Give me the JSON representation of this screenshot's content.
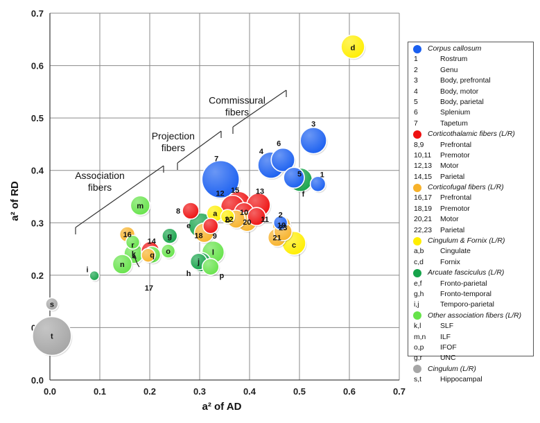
{
  "chart_data": {
    "type": "scatter",
    "subtype": "bubble",
    "xlabel": "a² of AD",
    "ylabel": "a² of RD",
    "xlim": [
      0.0,
      0.7
    ],
    "ylim": [
      0.0,
      0.7
    ],
    "x_ticks": [
      "0.0",
      "0.1",
      "0.2",
      "0.3",
      "0.4",
      "0.5",
      "0.6",
      "0.7"
    ],
    "y_ticks": [
      "0.0",
      "0.1",
      "0.2",
      "0.3",
      "0.4",
      "0.5",
      "0.6",
      "0.7"
    ],
    "grid": true,
    "legend_position": "right",
    "colors": {
      "corpus_callosum": "#1a5ff0",
      "corticothalamic": "#ee1111",
      "corticofugal": "#f7b22a",
      "cingulum_fornix": "#ffee00",
      "arcuate": "#16a34a",
      "other_association": "#66e34a",
      "cingulum_lr": "#a6a6a6"
    },
    "points": [
      {
        "label": "1",
        "group": "corpus_callosum",
        "x": 0.537,
        "y": 0.374,
        "r": 11
      },
      {
        "label": "2",
        "group": "corpus_callosum",
        "x": 0.462,
        "y": 0.3,
        "r": 10
      },
      {
        "label": "3",
        "group": "corpus_callosum",
        "x": 0.528,
        "y": 0.457,
        "r": 19
      },
      {
        "label": "4",
        "group": "corpus_callosum",
        "x": 0.443,
        "y": 0.41,
        "r": 19
      },
      {
        "label": "5",
        "group": "corpus_callosum",
        "x": 0.489,
        "y": 0.386,
        "r": 15
      },
      {
        "label": "6",
        "group": "corpus_callosum",
        "x": 0.467,
        "y": 0.42,
        "r": 17
      },
      {
        "label": "7",
        "group": "corpus_callosum",
        "x": 0.342,
        "y": 0.383,
        "r": 27
      },
      {
        "label": "8",
        "group": "corticothalamic",
        "x": 0.282,
        "y": 0.323,
        "r": 12
      },
      {
        "label": "9",
        "group": "corticothalamic",
        "x": 0.322,
        "y": 0.294,
        "r": 11
      },
      {
        "label": "10",
        "group": "corticothalamic",
        "x": 0.389,
        "y": 0.32,
        "r": 14
      },
      {
        "label": "11",
        "group": "corticothalamic",
        "x": 0.414,
        "y": 0.312,
        "r": 13
      },
      {
        "label": "12",
        "group": "corticothalamic",
        "x": 0.366,
        "y": 0.33,
        "r": 17
      },
      {
        "label": "13",
        "group": "corticothalamic",
        "x": 0.418,
        "y": 0.334,
        "r": 17
      },
      {
        "label": "14",
        "group": "corticothalamic",
        "x": 0.201,
        "y": 0.247,
        "r": 13
      },
      {
        "label": "15",
        "group": "corticothalamic",
        "x": 0.378,
        "y": 0.336,
        "r": 18
      },
      {
        "label": "16",
        "group": "corticofugal",
        "x": 0.155,
        "y": 0.278,
        "r": 11
      },
      {
        "label": "17",
        "group": "corticofugal",
        "x": 0.197,
        "y": 0.238,
        "r": 10
      },
      {
        "label": "18",
        "group": "corticofugal",
        "x": 0.309,
        "y": 0.281,
        "r": 14
      },
      {
        "label": "19",
        "group": "corticofugal",
        "x": 0.464,
        "y": 0.296,
        "r": 13
      },
      {
        "label": "20",
        "group": "corticofugal",
        "x": 0.395,
        "y": 0.302,
        "r": 14
      },
      {
        "label": "21",
        "group": "corticofugal",
        "x": 0.455,
        "y": 0.272,
        "r": 13
      },
      {
        "label": "22",
        "group": "corticofugal",
        "x": 0.373,
        "y": 0.307,
        "r": 13
      },
      {
        "label": "23",
        "group": "corticofugal",
        "x": 0.467,
        "y": 0.283,
        "r": 13
      },
      {
        "label": "a",
        "group": "cingulum_fornix",
        "x": 0.331,
        "y": 0.318,
        "r": 12
      },
      {
        "label": "b",
        "group": "cingulum_fornix",
        "x": 0.356,
        "y": 0.312,
        "r": 10
      },
      {
        "label": "c",
        "group": "cingulum_fornix",
        "x": 0.489,
        "y": 0.261,
        "r": 17
      },
      {
        "label": "d",
        "group": "cingulum_fornix",
        "x": 0.607,
        "y": 0.636,
        "r": 17
      },
      {
        "label": "e",
        "group": "arcuate",
        "x": 0.303,
        "y": 0.295,
        "r": 18
      },
      {
        "label": "f",
        "group": "arcuate",
        "x": 0.502,
        "y": 0.382,
        "r": 17
      },
      {
        "label": "g",
        "group": "arcuate",
        "x": 0.24,
        "y": 0.275,
        "r": 11
      },
      {
        "label": "h",
        "group": "arcuate",
        "x": 0.303,
        "y": 0.225,
        "r": 14
      },
      {
        "label": "i",
        "group": "arcuate",
        "x": 0.089,
        "y": 0.199,
        "r": 7
      },
      {
        "label": "j",
        "group": "arcuate",
        "x": 0.298,
        "y": 0.226,
        "r": 12
      },
      {
        "label": "k",
        "group": "other_association",
        "x": 0.168,
        "y": 0.241,
        "r": 14
      },
      {
        "label": "l",
        "group": "other_association",
        "x": 0.327,
        "y": 0.244,
        "r": 16
      },
      {
        "label": "m",
        "group": "other_association",
        "x": 0.181,
        "y": 0.333,
        "r": 14
      },
      {
        "label": "n",
        "group": "other_association",
        "x": 0.145,
        "y": 0.221,
        "r": 14
      },
      {
        "label": "o",
        "group": "other_association",
        "x": 0.237,
        "y": 0.246,
        "r": 10
      },
      {
        "label": "p",
        "group": "other_association",
        "x": 0.322,
        "y": 0.216,
        "r": 12
      },
      {
        "label": "q",
        "group": "other_association",
        "x": 0.205,
        "y": 0.239,
        "r": 12
      },
      {
        "label": "r",
        "group": "other_association",
        "x": 0.166,
        "y": 0.263,
        "r": 10
      },
      {
        "label": "s",
        "group": "cingulum_lr",
        "x": 0.004,
        "y": 0.145,
        "r": 9
      },
      {
        "label": "t",
        "group": "cingulum_lr",
        "x": 0.004,
        "y": 0.084,
        "r": 28
      }
    ],
    "annotations": [
      {
        "lines": [
          "Commissural",
          "fibers"
        ],
        "x": 0.375,
        "y": 0.527
      },
      {
        "lines": [
          "Projection",
          "fibers"
        ],
        "x": 0.247,
        "y": 0.459
      },
      {
        "lines": [
          "Association",
          "fibers"
        ],
        "x": 0.1,
        "y": 0.384
      }
    ]
  },
  "legend": [
    {
      "type": "group",
      "color": "#1a5ff0",
      "text": "Corpus callosum"
    },
    {
      "type": "item",
      "code": "1",
      "text": "Rostrum"
    },
    {
      "type": "item",
      "code": "2",
      "text": "Genu"
    },
    {
      "type": "item",
      "code": "3",
      "text": "Body, prefrontal"
    },
    {
      "type": "item",
      "code": "4",
      "text": "Body, motor"
    },
    {
      "type": "item",
      "code": "5",
      "text": "Body, parietal"
    },
    {
      "type": "item",
      "code": "6",
      "text": "Splenium"
    },
    {
      "type": "item",
      "code": "7",
      "text": "Tapetum"
    },
    {
      "type": "group",
      "color": "#ee1111",
      "text": "Corticothalamic fibers (L/R)"
    },
    {
      "type": "item",
      "code": "8,9",
      "text": "Prefrontal"
    },
    {
      "type": "item",
      "code": "10,11",
      "text": "Premotor"
    },
    {
      "type": "item",
      "code": "12,13",
      "text": "Motor"
    },
    {
      "type": "item",
      "code": "14,15",
      "text": "Parietal"
    },
    {
      "type": "group",
      "color": "#f7b22a",
      "text": "Corticofugal fibers (L/R)"
    },
    {
      "type": "item",
      "code": "16,17",
      "text": "Prefrontal"
    },
    {
      "type": "item",
      "code": "18,19",
      "text": "Premotor"
    },
    {
      "type": "item",
      "code": "20,21",
      "text": "Motor"
    },
    {
      "type": "item",
      "code": "22,23",
      "text": "Parietal"
    },
    {
      "type": "group",
      "color": "#ffee00",
      "text": "Cingulum & Fornix (L/R)"
    },
    {
      "type": "item",
      "code": "a,b",
      "text": "Cingulate"
    },
    {
      "type": "item",
      "code": "c,d",
      "text": "Fornix"
    },
    {
      "type": "group",
      "color": "#16a34a",
      "text": "Arcuate fasciculus (L/R)"
    },
    {
      "type": "item",
      "code": "e,f",
      "text": "Fronto-parietal"
    },
    {
      "type": "item",
      "code": "g,h",
      "text": "Fronto-temporal"
    },
    {
      "type": "item",
      "code": "i,j",
      "text": "Temporo-parietal"
    },
    {
      "type": "group",
      "color": "#66e34a",
      "text": "Other association fibers (L/R)"
    },
    {
      "type": "item",
      "code": "k,l",
      "text": "SLF"
    },
    {
      "type": "item",
      "code": "m,n",
      "text": "ILF"
    },
    {
      "type": "item",
      "code": "o,p",
      "text": "IFOF"
    },
    {
      "type": "item",
      "code": "g,r",
      "text": "UNC"
    },
    {
      "type": "group",
      "color": "#a6a6a6",
      "text": "Cingulum (L/R)"
    },
    {
      "type": "item",
      "code": "s,t",
      "text": "Hippocampal"
    }
  ]
}
